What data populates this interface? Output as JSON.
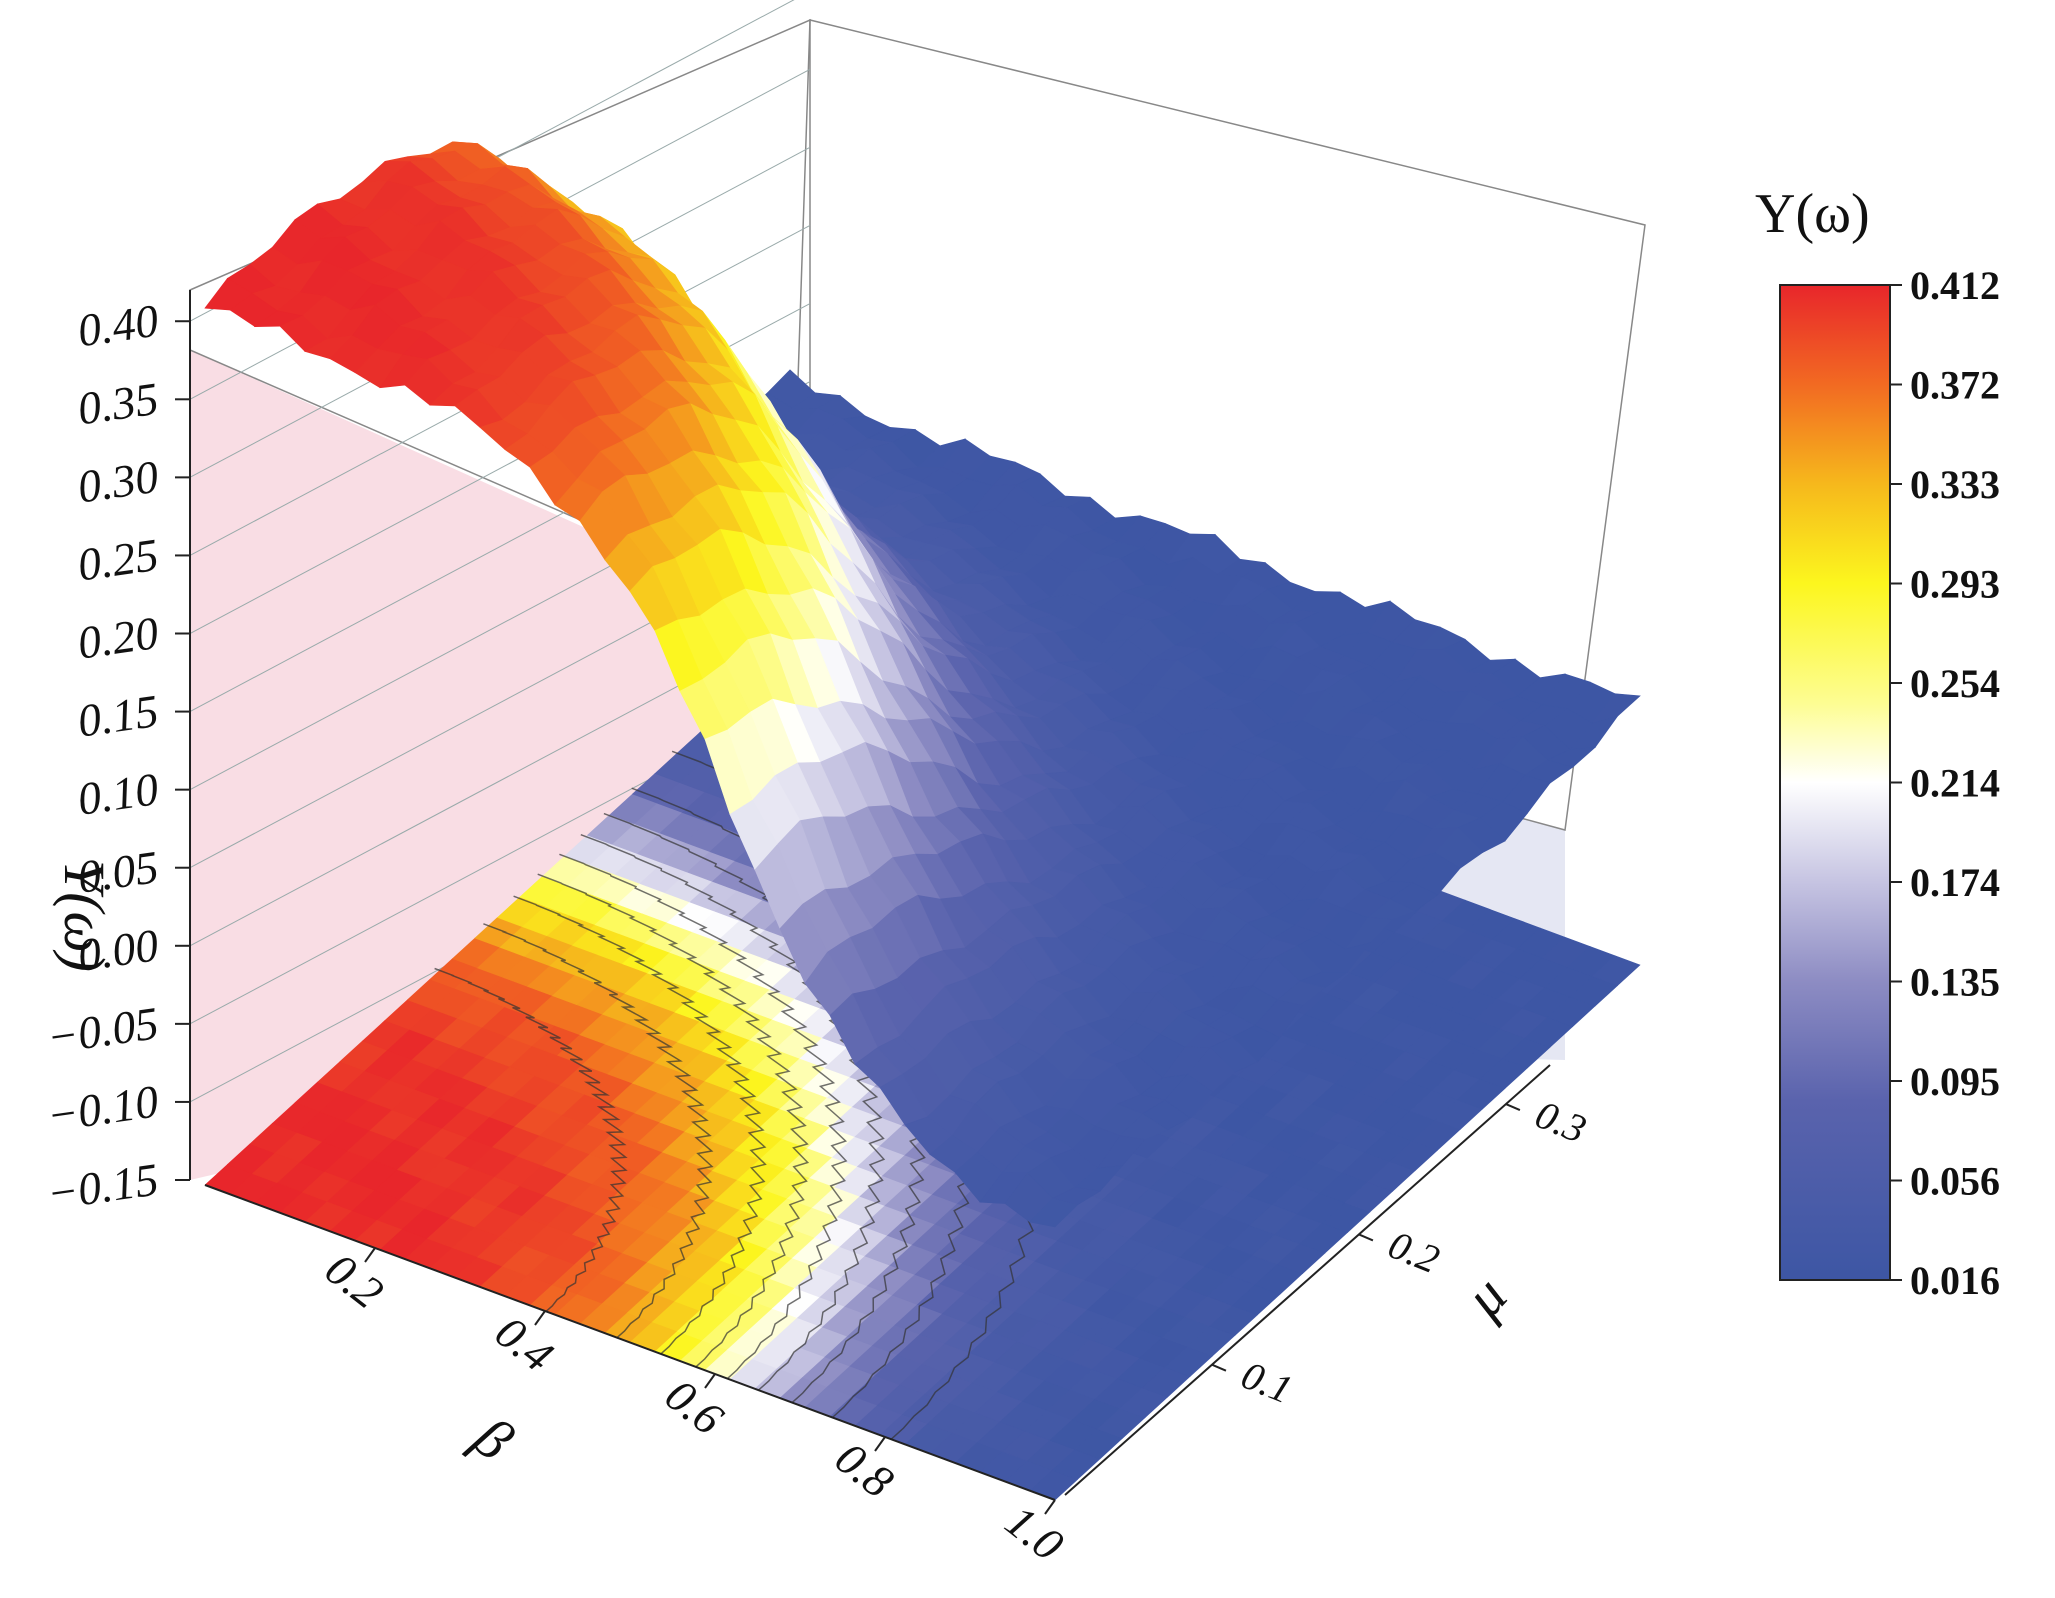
{
  "chart_data": {
    "type": "surface3d",
    "title": "",
    "zlabel": "Y(ω)",
    "xlabel": "β",
    "ylabel": "μ",
    "z_ticks": [
      "0.40",
      "0.35",
      "0.30",
      "0.25",
      "0.20",
      "0.15",
      "0.10",
      "0.05",
      "0.00",
      "−0.05",
      "−0.10",
      "−0.15"
    ],
    "z_range": [
      -0.15,
      0.42
    ],
    "beta_ticks": [
      "0.2",
      "0.4",
      "0.6",
      "0.8",
      "1.0"
    ],
    "beta_range": [
      0.0,
      1.0
    ],
    "mu_ticks": [
      "0.1",
      "0.2",
      "0.3"
    ],
    "mu_range": [
      0.0,
      0.33
    ],
    "colorbar": {
      "title": "Y(ω)",
      "ticks": [
        "0.412",
        "0.372",
        "0.333",
        "0.293",
        "0.254",
        "0.214",
        "0.174",
        "0.135",
        "0.095",
        "0.056",
        "0.016"
      ],
      "colors": [
        "#e8262b",
        "#f26a22",
        "#f6b81c",
        "#fcf61e",
        "#fdfd92",
        "#ffffff",
        "#c6c4e2",
        "#8d8cc3",
        "#5a63ad",
        "#3d56a4"
      ],
      "min": 0.016,
      "max": 0.412
    },
    "surface_description_values": {
      "max_value": 0.412,
      "min_value": 0.016,
      "high_region": "low μ or low β",
      "low_region": "high μ and high β"
    },
    "grid": true,
    "contour_projection": true
  }
}
